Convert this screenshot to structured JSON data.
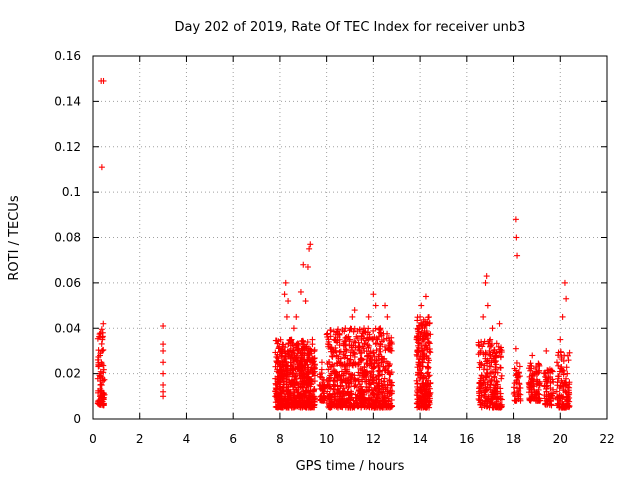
{
  "chart_data": {
    "type": "scatter",
    "title": "Day 202 of 2019, Rate Of TEC Index for receiver unb3",
    "xlabel": "GPS time / hours",
    "ylabel": "ROTI / TECUs",
    "xlim": [
      0,
      22
    ],
    "ylim": [
      0,
      0.16
    ],
    "x_ticks": [
      "0",
      "2",
      "4",
      "6",
      "8",
      "10",
      "12",
      "14",
      "16",
      "18",
      "20",
      "22"
    ],
    "y_ticks": [
      "0",
      "0.02",
      "0.04",
      "0.06",
      "0.08",
      "0.1",
      "0.12",
      "0.14",
      "0.16"
    ],
    "grid": true,
    "marker": "+",
    "series": [
      {
        "name": "ROTI",
        "color": "#ff0000",
        "points": [
          [
            0.3,
            0.01
          ],
          [
            0.32,
            0.015
          ],
          [
            0.34,
            0.02
          ],
          [
            0.36,
            0.025
          ],
          [
            0.38,
            0.03
          ],
          [
            0.4,
            0.035
          ],
          [
            0.42,
            0.038
          ],
          [
            0.44,
            0.042
          ],
          [
            0.3,
            0.028
          ],
          [
            0.33,
            0.012
          ],
          [
            0.37,
            0.008
          ],
          [
            0.41,
            0.018
          ],
          [
            0.35,
            0.149
          ],
          [
            0.45,
            0.149
          ],
          [
            0.38,
            0.111
          ],
          [
            3.0,
            0.041
          ],
          [
            3.0,
            0.033
          ],
          [
            3.0,
            0.03
          ],
          [
            3.0,
            0.025
          ],
          [
            3.0,
            0.02
          ],
          [
            3.0,
            0.015
          ],
          [
            3.0,
            0.012
          ],
          [
            3.0,
            0.01
          ],
          [
            7.8,
            0.01
          ],
          [
            7.9,
            0.015
          ],
          [
            8.0,
            0.02
          ],
          [
            8.1,
            0.025
          ],
          [
            8.2,
            0.055
          ],
          [
            8.25,
            0.06
          ],
          [
            8.3,
            0.045
          ],
          [
            8.35,
            0.052
          ],
          [
            8.4,
            0.03
          ],
          [
            8.5,
            0.035
          ],
          [
            8.6,
            0.04
          ],
          [
            8.7,
            0.045
          ],
          [
            8.8,
            0.033
          ],
          [
            8.9,
            0.056
          ],
          [
            9.0,
            0.068
          ],
          [
            9.1,
            0.052
          ],
          [
            9.2,
            0.067
          ],
          [
            9.25,
            0.075
          ],
          [
            9.3,
            0.077
          ],
          [
            9.35,
            0.03
          ],
          [
            9.4,
            0.02
          ],
          [
            9.45,
            0.01
          ],
          [
            9.7,
            0.015
          ],
          [
            9.8,
            0.025
          ],
          [
            9.9,
            0.01
          ],
          [
            10.2,
            0.02
          ],
          [
            10.4,
            0.03
          ],
          [
            10.6,
            0.025
          ],
          [
            10.8,
            0.04
          ],
          [
            11.0,
            0.035
          ],
          [
            11.1,
            0.045
          ],
          [
            11.2,
            0.048
          ],
          [
            11.4,
            0.03
          ],
          [
            11.6,
            0.04
          ],
          [
            11.8,
            0.045
          ],
          [
            12.0,
            0.055
          ],
          [
            12.1,
            0.05
          ],
          [
            12.3,
            0.04
          ],
          [
            12.5,
            0.05
          ],
          [
            12.6,
            0.045
          ],
          [
            12.7,
            0.02
          ],
          [
            14.0,
            0.045
          ],
          [
            14.05,
            0.05
          ],
          [
            14.1,
            0.04
          ],
          [
            14.2,
            0.035
          ],
          [
            14.25,
            0.054
          ],
          [
            14.3,
            0.02
          ],
          [
            14.35,
            0.01
          ],
          [
            16.6,
            0.03
          ],
          [
            16.7,
            0.045
          ],
          [
            16.8,
            0.06
          ],
          [
            16.85,
            0.063
          ],
          [
            16.9,
            0.05
          ],
          [
            17.0,
            0.035
          ],
          [
            17.1,
            0.04
          ],
          [
            17.2,
            0.025
          ],
          [
            17.4,
            0.042
          ],
          [
            18.1,
            0.088
          ],
          [
            18.12,
            0.08
          ],
          [
            18.15,
            0.072
          ],
          [
            18.1,
            0.031
          ],
          [
            18.15,
            0.02
          ],
          [
            18.2,
            0.01
          ],
          [
            18.8,
            0.028
          ],
          [
            18.9,
            0.02
          ],
          [
            19.0,
            0.012
          ],
          [
            19.4,
            0.03
          ],
          [
            19.5,
            0.018
          ],
          [
            19.6,
            0.008
          ],
          [
            20.0,
            0.035
          ],
          [
            20.1,
            0.045
          ],
          [
            20.2,
            0.06
          ],
          [
            20.25,
            0.053
          ],
          [
            20.3,
            0.02
          ],
          [
            20.35,
            0.006
          ]
        ]
      }
    ],
    "dense_clusters": [
      {
        "x_min": 0.2,
        "x_max": 0.5,
        "y_min": 0.006,
        "y_max": 0.04,
        "count": 70
      },
      {
        "x_min": 7.8,
        "x_max": 9.5,
        "y_min": 0.005,
        "y_max": 0.035,
        "count": 650
      },
      {
        "x_min": 9.7,
        "x_max": 9.95,
        "y_min": 0.008,
        "y_max": 0.022,
        "count": 40
      },
      {
        "x_min": 10.0,
        "x_max": 12.8,
        "y_min": 0.005,
        "y_max": 0.04,
        "count": 750
      },
      {
        "x_min": 13.85,
        "x_max": 14.45,
        "y_min": 0.005,
        "y_max": 0.045,
        "count": 250
      },
      {
        "x_min": 16.5,
        "x_max": 17.5,
        "y_min": 0.005,
        "y_max": 0.035,
        "count": 220
      },
      {
        "x_min": 18.0,
        "x_max": 18.3,
        "y_min": 0.008,
        "y_max": 0.025,
        "count": 40
      },
      {
        "x_min": 18.65,
        "x_max": 19.15,
        "y_min": 0.008,
        "y_max": 0.025,
        "count": 90
      },
      {
        "x_min": 19.3,
        "x_max": 19.7,
        "y_min": 0.006,
        "y_max": 0.022,
        "count": 60
      },
      {
        "x_min": 19.85,
        "x_max": 20.4,
        "y_min": 0.005,
        "y_max": 0.03,
        "count": 110
      }
    ]
  }
}
